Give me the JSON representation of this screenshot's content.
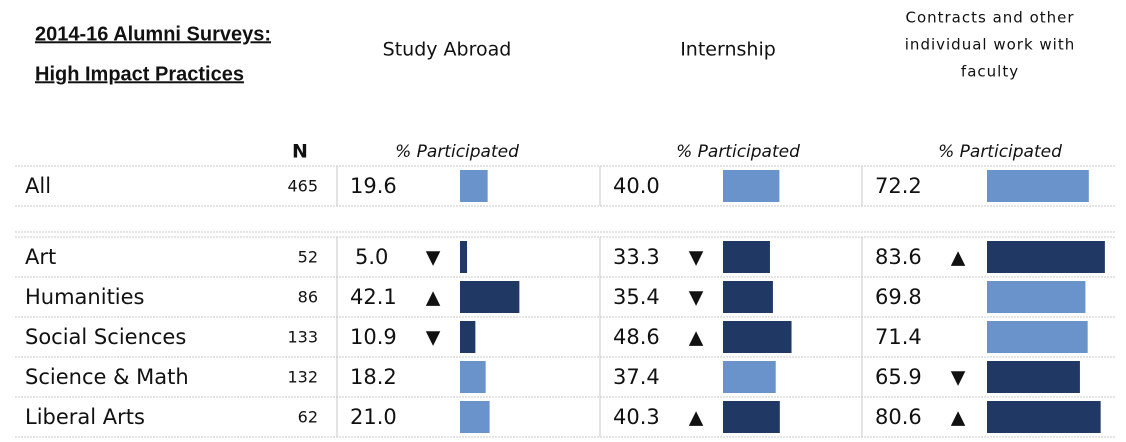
{
  "header": {
    "title": [
      "2014-16 Alumni Surveys:",
      "High Impact Practices"
    ],
    "columns": [
      [
        "Study Abroad"
      ],
      [
        "Internship"
      ],
      [
        "Contracts and other",
        "individual work with",
        "faculty"
      ]
    ],
    "n_label": "N",
    "measure_label": "% Participated"
  },
  "table": {
    "rows": [
      {
        "label": "All",
        "n": 465,
        "values": [
          19.6,
          40,
          72.2
        ],
        "value_labels": [
          "19.6",
          "40.0",
          "72.2"
        ],
        "flags": [
          null,
          null,
          null
        ]
      },
      {
        "label": "Art",
        "n": 52,
        "values": [
          5,
          33.3,
          83.6
        ],
        "value_labels": [
          "5.0",
          "33.3",
          "83.6"
        ],
        "flags": [
          "▼",
          "▼",
          "▲"
        ]
      },
      {
        "label": "Humanities",
        "n": 86,
        "values": [
          42.1,
          35.4,
          69.8
        ],
        "value_labels": [
          "42.1",
          "35.4",
          "69.8"
        ],
        "flags": [
          "▲",
          "▼",
          null
        ]
      },
      {
        "label": "Social Sciences",
        "n": 133,
        "values": [
          10.9,
          48.6,
          71.4
        ],
        "value_labels": [
          "10.9",
          "48.6",
          "71.4"
        ],
        "flags": [
          "▼",
          "▲",
          null
        ]
      },
      {
        "label": "Science & Math",
        "n": 132,
        "values": [
          18.2,
          37.4,
          65.9
        ],
        "value_labels": [
          "18.2",
          "37.4",
          "65.9"
        ],
        "flags": [
          null,
          null,
          "▼"
        ]
      },
      {
        "label": "Liberal Arts",
        "n": 62,
        "values": [
          21,
          40.3,
          80.6
        ],
        "value_labels": [
          "21.0",
          "40.3",
          "80.6"
        ],
        "flags": [
          null,
          "▲",
          "▲"
        ]
      }
    ]
  },
  "bar_colors": {
    "flagged": "#1f3864",
    "default": "#6a93cb"
  }
}
